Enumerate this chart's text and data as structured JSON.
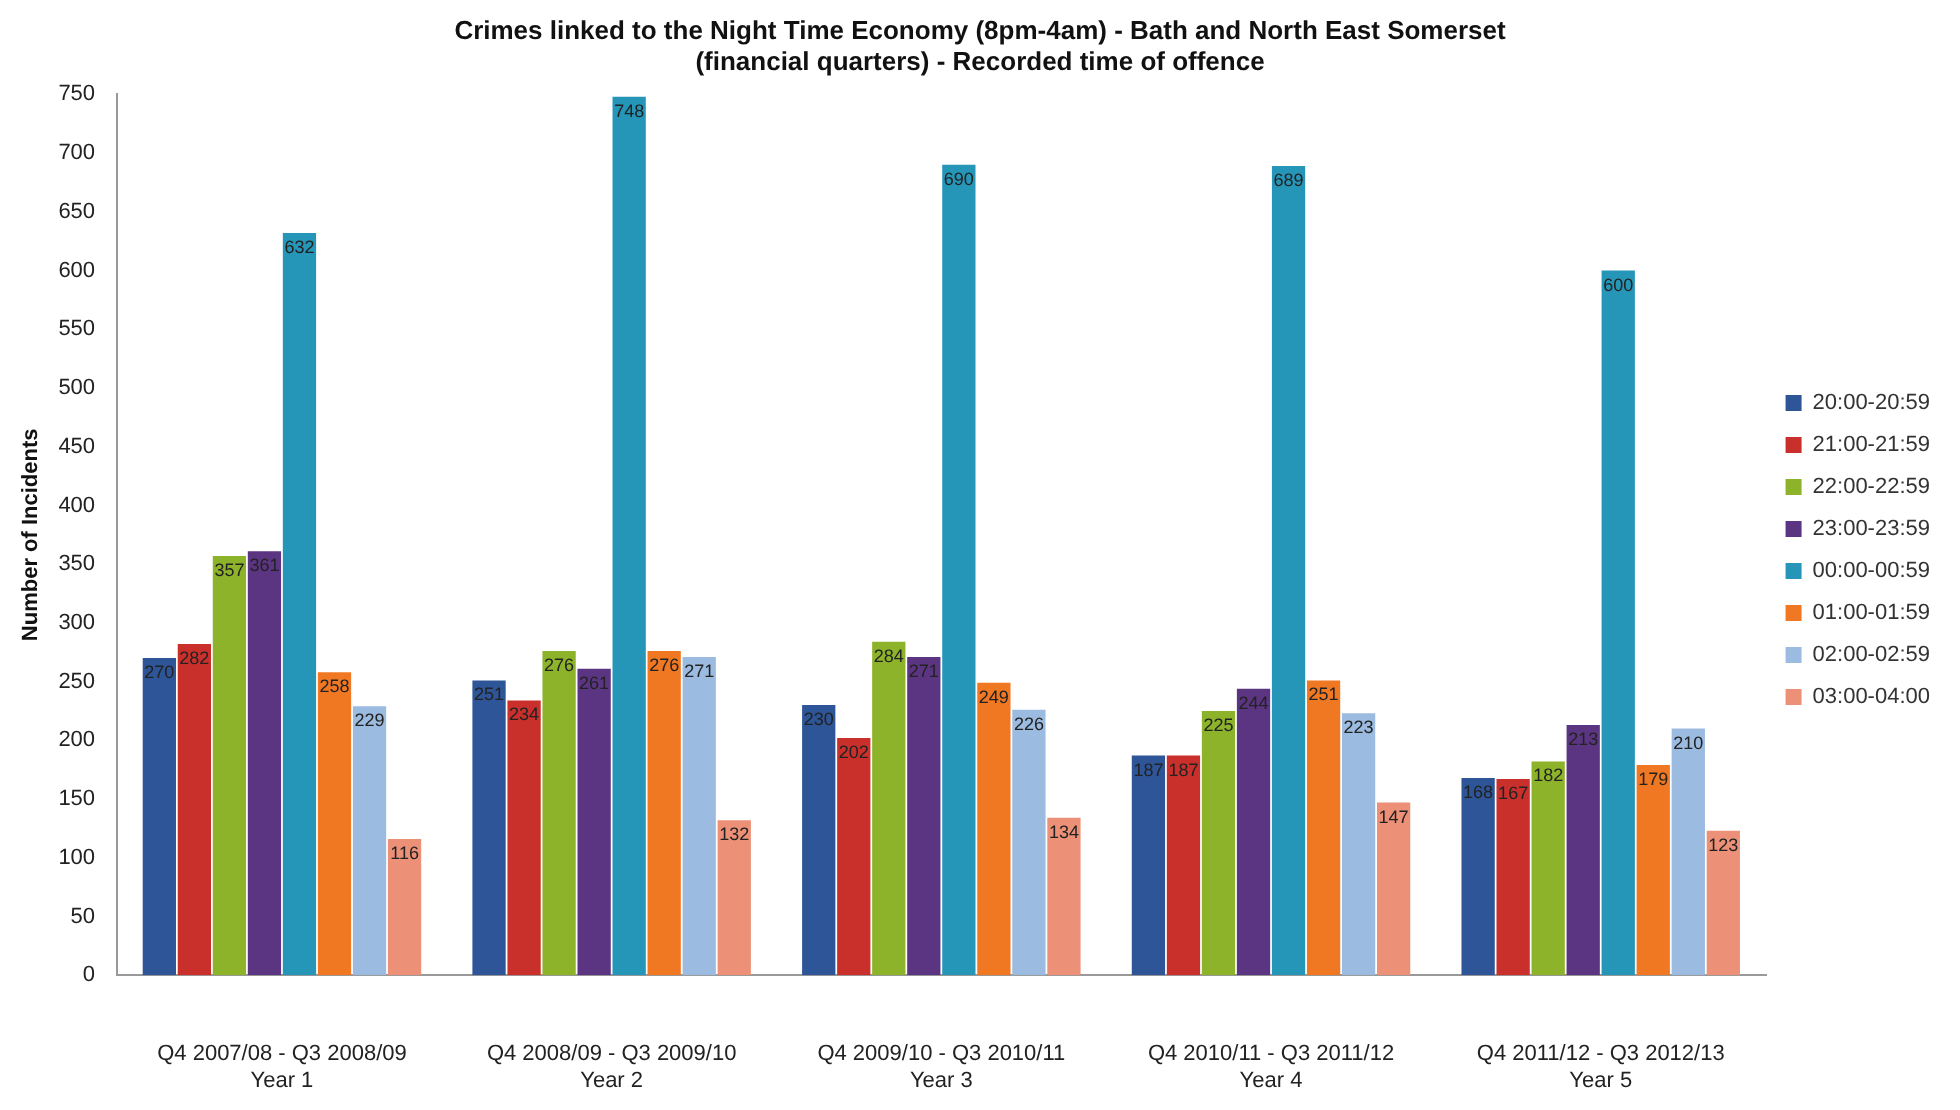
{
  "chart_data": {
    "type": "bar",
    "title": "Crimes linked to the Night Time Economy (8pm-4am) - Bath and North East Somerset\n(financial quarters) - Recorded time of offence",
    "ylabel": "Number of Incidents",
    "categories": [
      "Q4 2007/08 - Q3 2008/09\nYear 1",
      "Q4 2008/09 - Q3 2009/10\nYear 2",
      "Q4 2009/10 - Q3 2010/11\nYear 3",
      "Q4 2010/11 - Q3 2011/12\nYear 4",
      "Q4 2011/12 - Q3 2012/13\nYear 5"
    ],
    "series": [
      {
        "name": "20:00-20:59",
        "color": "#2e5597",
        "values": [
          270,
          251,
          230,
          187,
          168
        ]
      },
      {
        "name": "21:00-21:59",
        "color": "#c9302c",
        "values": [
          282,
          234,
          202,
          187,
          167
        ]
      },
      {
        "name": "22:00-22:59",
        "color": "#8db32a",
        "values": [
          357,
          276,
          284,
          225,
          182
        ]
      },
      {
        "name": "23:00-23:59",
        "color": "#5c3582",
        "values": [
          361,
          261,
          271,
          244,
          213
        ]
      },
      {
        "name": "00:00-00:59",
        "color": "#2596b8",
        "values": [
          632,
          748,
          690,
          689,
          600
        ]
      },
      {
        "name": "01:00-01:59",
        "color": "#f07823",
        "values": [
          258,
          276,
          249,
          251,
          179
        ]
      },
      {
        "name": "02:00-02:59",
        "color": "#9bbbe0",
        "values": [
          229,
          271,
          226,
          223,
          210
        ]
      },
      {
        "name": "03:00-04:00",
        "color": "#ec9077",
        "values": [
          116,
          132,
          134,
          147,
          123
        ]
      }
    ],
    "ylim": [
      0,
      750
    ],
    "yticks": [
      0,
      50,
      100,
      150,
      200,
      250,
      300,
      350,
      400,
      450,
      500,
      550,
      600,
      650,
      700,
      750
    ],
    "grid": false,
    "legend": "right",
    "data_labels": true
  }
}
